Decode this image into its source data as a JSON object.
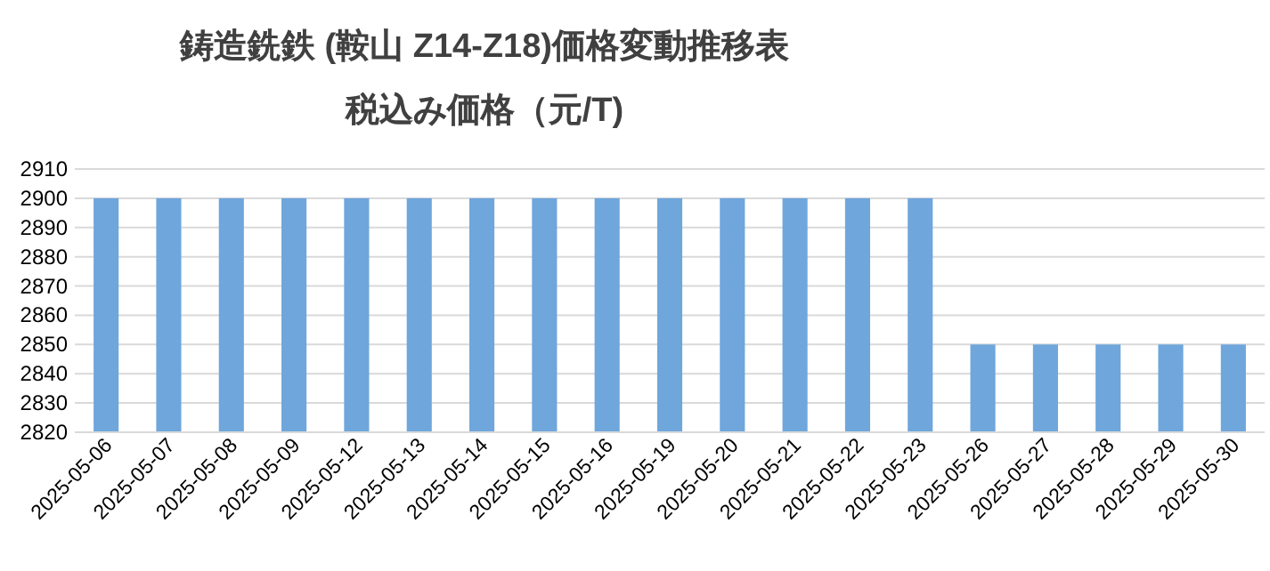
{
  "chart_data": {
    "type": "bar",
    "title": "鋳造銑鉄 (鞍山 Z14-Z18)価格変動推移表",
    "subtitle": "税込み価格（元/T)",
    "categories": [
      "2025-05-06",
      "2025-05-07",
      "2025-05-08",
      "2025-05-09",
      "2025-05-12",
      "2025-05-13",
      "2025-05-14",
      "2025-05-15",
      "2025-05-16",
      "2025-05-19",
      "2025-05-20",
      "2025-05-21",
      "2025-05-22",
      "2025-05-23",
      "2025-05-26",
      "2025-05-27",
      "2025-05-28",
      "2025-05-29",
      "2025-05-30"
    ],
    "values": [
      2900,
      2900,
      2900,
      2900,
      2900,
      2900,
      2900,
      2900,
      2900,
      2900,
      2900,
      2900,
      2900,
      2900,
      2850,
      2850,
      2850,
      2850,
      2850
    ],
    "color": "#6fa6dc",
    "ylim": [
      2820,
      2910
    ],
    "yticks": [
      2820,
      2830,
      2840,
      2850,
      2860,
      2870,
      2880,
      2890,
      2900,
      2910
    ],
    "grid": "y"
  }
}
